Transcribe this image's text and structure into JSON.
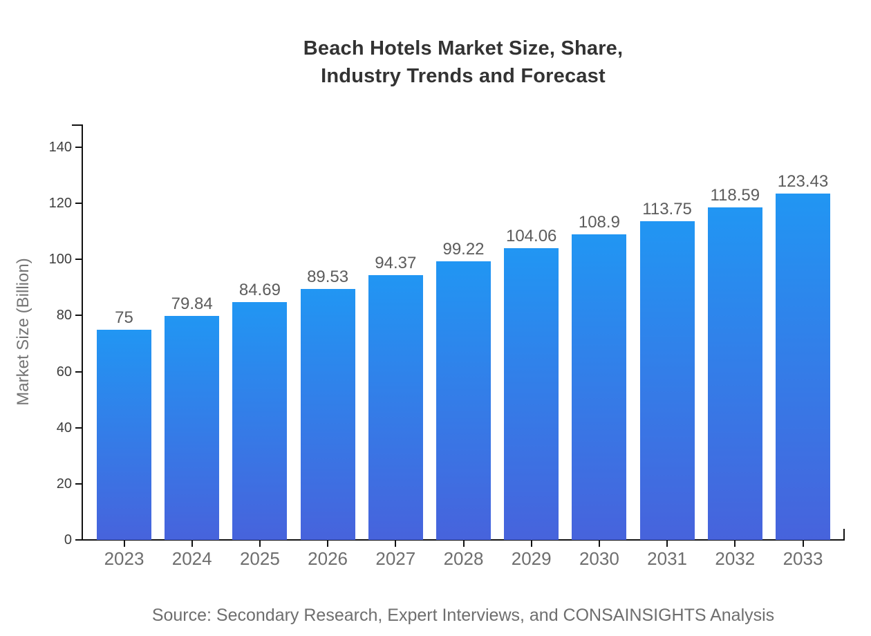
{
  "title": {
    "line1": "Beach Hotels Market Size, Share,",
    "line2": "Industry Trends and Forecast"
  },
  "source": "Source: Secondary Research, Expert Interviews, and CONSAINSIGHTS Analysis",
  "colors": {
    "bar_gradient_top": "#2196f3",
    "bar_gradient_bottom": "#4763dc",
    "axis": "#111111",
    "title_text": "#333333",
    "y_tick_label": "#3d3d3d",
    "x_tick_label": "#6e6e6e",
    "value_label": "#5c5c5c",
    "y_axis_title": "#757575",
    "source_text": "#6e6e6e",
    "background": "#ffffff"
  },
  "chart_data": {
    "type": "bar",
    "title": "Beach Hotels Market Size, Share, Industry Trends and Forecast",
    "categories": [
      "2023",
      "2024",
      "2025",
      "2026",
      "2027",
      "2028",
      "2029",
      "2030",
      "2031",
      "2032",
      "2033"
    ],
    "values": [
      75,
      79.84,
      84.69,
      89.53,
      94.37,
      99.22,
      104.06,
      108.9,
      113.75,
      118.59,
      123.43
    ],
    "xlabel": "",
    "ylabel": "Market Size (Billion)",
    "ylim": [
      0,
      148
    ],
    "yticks": [
      0,
      20,
      40,
      60,
      80,
      100,
      120,
      140
    ],
    "grid": false,
    "legend": false,
    "value_labels_shown": true
  }
}
